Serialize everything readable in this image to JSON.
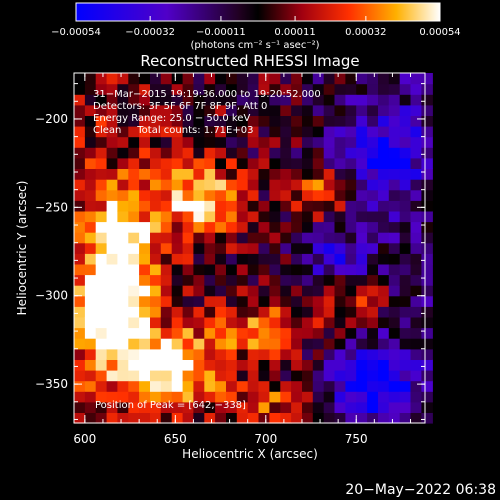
{
  "chart_data": {
    "type": "heatmap",
    "title": "Reconstructed RHESSI Image",
    "xlabel": "Heliocentric X (arcsec)",
    "ylabel": "Heliocentric Y (arcsec)",
    "xlim": [
      594,
      788
    ],
    "ylim": [
      -372,
      -174
    ],
    "xticks": [
      600,
      650,
      700,
      750
    ],
    "yticks": [
      -200,
      -250,
      -300,
      -350
    ],
    "xtick_labels": [
      "600",
      "650",
      "700",
      "750"
    ],
    "ytick_labels": [
      "−200",
      "−250",
      "−300",
      "−350"
    ],
    "colorbar": {
      "range": [
        -0.00054,
        0.00054
      ],
      "ticks": [
        -0.00054,
        -0.00032,
        -0.00011,
        0.00011,
        0.00032,
        0.00054
      ],
      "tick_labels": [
        "−0.00054",
        "−0.00032",
        "−0.00011",
        "0.00011",
        "0.00032",
        "0.00054"
      ],
      "units_label": "(photons cm⁻² s⁻¹ asec⁻²)"
    },
    "annotations": {
      "time_range": "31−Mar−2015 19:19:36.000 to 19:20:52.000",
      "detectors": "Detectors: 3F 5F 6F 7F 8F 9F, Att 0",
      "energy": "Energy Range: 25.0 − 50.0 keV",
      "clean": "Clean     Total counts: 1.71E+03",
      "peak": "Position of Peak = [642,−338]"
    },
    "peak": [
      642,
      -338
    ],
    "hotspots": [
      {
        "x": 620,
        "y": -280,
        "sx": 14,
        "sy": 30,
        "a": 0.00055
      },
      {
        "x": 612,
        "y": -310,
        "sx": 10,
        "sy": 16,
        "a": 0.0005
      },
      {
        "x": 645,
        "y": -340,
        "sx": 20,
        "sy": 14,
        "a": 0.0006
      },
      {
        "x": 665,
        "y": -245,
        "sx": 16,
        "sy": 14,
        "a": 0.0005
      },
      {
        "x": 700,
        "y": -320,
        "sx": 18,
        "sy": 10,
        "a": 0.0004
      },
      {
        "x": 730,
        "y": -240,
        "sx": 10,
        "sy": 10,
        "a": 0.00042
      },
      {
        "x": 745,
        "y": -300,
        "sx": 14,
        "sy": 10,
        "a": 0.0003
      },
      {
        "x": 700,
        "y": -360,
        "sx": 18,
        "sy": 8,
        "a": 0.00028
      }
    ],
    "coldspots": [
      {
        "x": 760,
        "y": -350,
        "sx": 16,
        "sy": 14,
        "a": 0.0005
      },
      {
        "x": 765,
        "y": -220,
        "sx": 16,
        "sy": 18,
        "a": 0.0004
      },
      {
        "x": 740,
        "y": -280,
        "sx": 12,
        "sy": 10,
        "a": 0.00035
      }
    ]
  },
  "footer": {
    "timestamp": "20−May−2022 06:38"
  }
}
